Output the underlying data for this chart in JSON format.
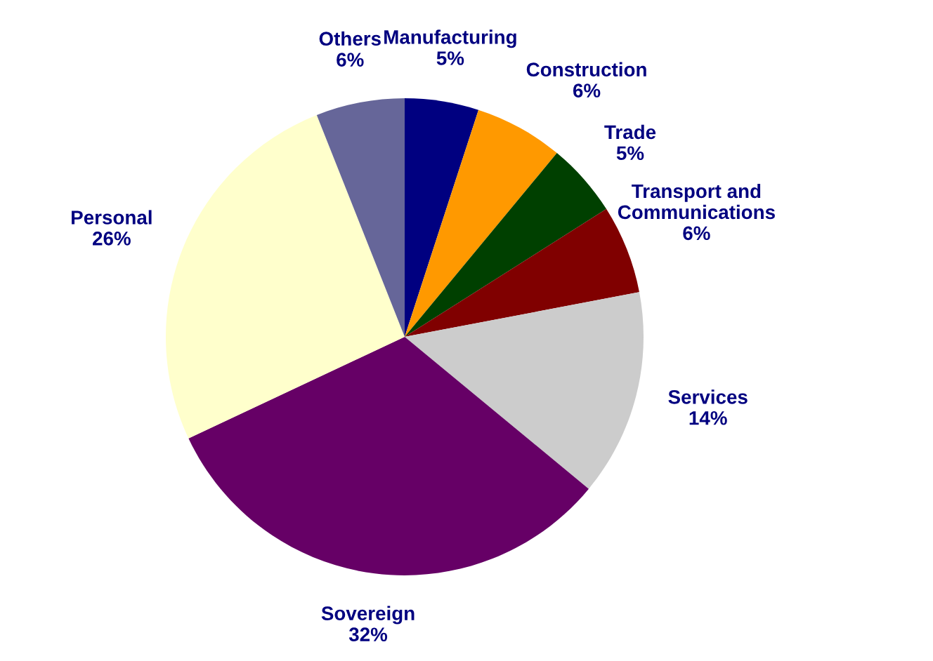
{
  "chart_data": {
    "type": "pie",
    "categories": [
      "Manufacturing",
      "Construction",
      "Trade",
      "Transport and Communications",
      "Services",
      "Sovereign",
      "Personal",
      "Others"
    ],
    "values": [
      5,
      6,
      5,
      6,
      14,
      32,
      26,
      6
    ],
    "colors": [
      "#000080",
      "#ff9900",
      "#004000",
      "#800000",
      "#cccccc",
      "#660066",
      "#ffffcc",
      "#666699"
    ],
    "value_labels": [
      "5%",
      "6%",
      "5%",
      "6%",
      "14%",
      "32%",
      "26%",
      "6%"
    ],
    "legend": false
  }
}
